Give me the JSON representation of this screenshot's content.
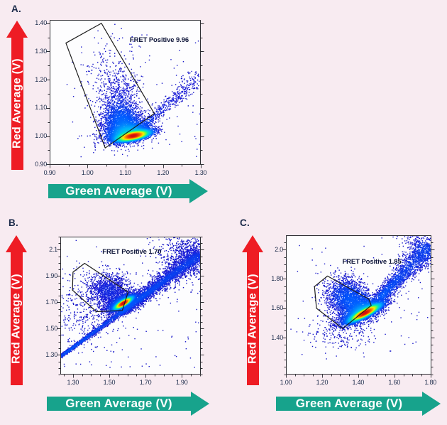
{
  "page": {
    "background": "#f8ebf1"
  },
  "colors": {
    "red_arrow": "#ee1c24",
    "green_arrow": "#17a38c",
    "panel_letter": "#1c2b4a",
    "tick_text": "#1c2b4a",
    "axis_line": "#2e2e33",
    "gate_line": "#1c1c1c",
    "gate_text": "#10173a",
    "plot_bg": "#fdfdfe"
  },
  "chart_data": {
    "type": "scatter",
    "subtype": "density-scatter",
    "description": "Three FRET density dot plots (Red Average vs Green Average) with polygonal FRET-positive gates and percentage values.",
    "colormap": "jet (blue = low density, red = high density)",
    "panels": [
      {
        "panel_label": "A.",
        "xlabel": "Green Average (V)",
        "ylabel": "Red Average (V)",
        "gate_label": "FRET Positive 9.96",
        "gate_value": 9.96,
        "xlim": [
          0.9,
          1.3
        ],
        "ylim": [
          0.898,
          1.412
        ],
        "xtick_values": [
          0.9,
          1.0,
          1.1,
          1.2,
          1.3
        ],
        "xtick_labels": [
          "0.90",
          "1.00",
          "1.10",
          "1.20",
          "1.30"
        ],
        "ytick_values": [
          0.9,
          1.0,
          1.1,
          1.2,
          1.3,
          1.4
        ],
        "ytick_labels": [
          "0.90",
          "1.00",
          "1.10",
          "1.20",
          "1.30",
          "1.40"
        ],
        "minor_tick_step": 0.05,
        "gate_polygon": [
          [
            0.943,
            1.33
          ],
          [
            1.037,
            1.4
          ],
          [
            1.177,
            1.08
          ],
          [
            1.047,
            0.958
          ]
        ],
        "gate_label_anchor": [
          1.112,
          1.338
        ],
        "density_clusters": [
          {
            "type": "gauss",
            "cx": 1.122,
            "cy": 1.001,
            "sa": 0.023,
            "sb": 0.0075,
            "rot": 16,
            "n": 5200
          },
          {
            "type": "gauss",
            "cx": 1.108,
            "cy": 1.014,
            "sa": 0.032,
            "sb": 0.016,
            "rot": 18,
            "n": 2300
          },
          {
            "type": "gauss",
            "cx": 1.094,
            "cy": 1.048,
            "sa": 0.024,
            "sb": 0.031,
            "rot": 0,
            "n": 1300
          },
          {
            "type": "gauss",
            "cx": 1.092,
            "cy": 1.052,
            "sa": 0.036,
            "sb": 0.046,
            "rot": 0,
            "n": 650
          },
          {
            "type": "gauss",
            "cx": 1.082,
            "cy": 1.125,
            "sa": 0.027,
            "sb": 0.058,
            "rot": -8,
            "n": 620
          },
          {
            "type": "gauss",
            "cx": 1.052,
            "cy": 1.235,
            "sa": 0.034,
            "sb": 0.065,
            "rot": -6,
            "n": 150
          },
          {
            "type": "line",
            "x1": 1.155,
            "y1": 1.045,
            "x2": 1.302,
            "y2": 1.215,
            "s1": 0.006,
            "s2": 0.018,
            "n": 430
          },
          {
            "type": "uniform",
            "x0": 0.945,
            "x1": 1.3,
            "y0": 0.92,
            "y1": 1.36,
            "n": 80
          }
        ]
      },
      {
        "panel_label": "B.",
        "xlabel": "Green Average (V)",
        "ylabel": "Red Average (V)",
        "gate_label": "FRET Positive 1.70",
        "gate_value": 1.7,
        "xlim": [
          1.23,
          2.005
        ],
        "ylim": [
          1.15,
          2.2
        ],
        "xtick_values": [
          1.3,
          1.5,
          1.7,
          1.9
        ],
        "xtick_labels": [
          "1.30",
          "1.50",
          "1.70",
          "1.90"
        ],
        "ytick_values": [
          1.3,
          1.5,
          1.7,
          1.9,
          2.1
        ],
        "ytick_labels": [
          "1.30",
          "1.50",
          "1.70",
          "1.90",
          "2.1"
        ],
        "minor_tick_step": 0.05,
        "gate_polygon": [
          [
            1.364,
            1.997
          ],
          [
            1.604,
            1.778
          ],
          [
            1.572,
            1.638
          ],
          [
            1.429,
            1.629
          ],
          [
            1.297,
            1.793
          ],
          [
            1.3,
            1.93
          ]
        ],
        "gate_label_anchor": [
          1.462,
          2.082
        ],
        "density_clusters": [
          {
            "type": "line",
            "x1": 1.232,
            "y1": 1.287,
            "x2": 2.003,
            "y2": 2.065,
            "s1": 0.0055,
            "s2": 0.018,
            "n": 2700
          },
          {
            "type": "line",
            "x1": 1.56,
            "y1": 1.615,
            "x2": 2.003,
            "y2": 2.075,
            "s1": 0.018,
            "s2": 0.05,
            "n": 2300
          },
          {
            "type": "gauss",
            "cx": 1.95,
            "cy": 2.07,
            "sa": 0.075,
            "sb": 0.1,
            "rot": 45,
            "n": 700
          },
          {
            "type": "gauss",
            "cx": 1.578,
            "cy": 1.693,
            "sa": 0.032,
            "sb": 0.009,
            "rot": 42,
            "n": 5200
          },
          {
            "type": "gauss",
            "cx": 1.566,
            "cy": 1.7,
            "sa": 0.052,
            "sb": 0.02,
            "rot": 40,
            "n": 1700
          },
          {
            "type": "gauss",
            "cx": 1.5,
            "cy": 1.785,
            "sa": 0.058,
            "sb": 0.068,
            "rot": 25,
            "n": 1350
          },
          {
            "type": "gauss",
            "cx": 1.37,
            "cy": 1.63,
            "sa": 0.095,
            "sb": 0.15,
            "rot": 0,
            "n": 380
          },
          {
            "type": "uniform",
            "x0": 1.24,
            "x1": 2.0,
            "y0": 1.2,
            "y1": 2.19,
            "n": 130
          }
        ]
      },
      {
        "panel_label": "C.",
        "xlabel": "Green Average (V)",
        "ylabel": "Red Average (V)",
        "gate_label": "FRET Positive 1.85",
        "gate_value": 1.85,
        "xlim": [
          1.0,
          1.805
        ],
        "ylim": [
          1.148,
          2.098
        ],
        "xtick_values": [
          1.0,
          1.2,
          1.4,
          1.6,
          1.8
        ],
        "xtick_labels": [
          "1.00",
          "1.20",
          "1.40",
          "1.60",
          "1.80"
        ],
        "ytick_values": [
          1.4,
          1.6,
          1.8,
          2.0
        ],
        "ytick_labels": [
          "1.40",
          "1.60",
          "1.80",
          "2.0"
        ],
        "minor_tick_step": 0.05,
        "gate_polygon": [
          [
            1.23,
            1.82
          ],
          [
            1.458,
            1.663
          ],
          [
            1.472,
            1.619
          ],
          [
            1.314,
            1.462
          ],
          [
            1.169,
            1.6
          ],
          [
            1.158,
            1.748
          ]
        ],
        "gate_label_anchor": [
          1.312,
          1.912
        ],
        "density_clusters": [
          {
            "type": "gauss",
            "cx": 1.437,
            "cy": 1.568,
            "sa": 0.05,
            "sb": 0.012,
            "rot": 33,
            "n": 5200
          },
          {
            "type": "gauss",
            "cx": 1.425,
            "cy": 1.578,
            "sa": 0.072,
            "sb": 0.028,
            "rot": 33,
            "n": 2400
          },
          {
            "type": "gauss",
            "cx": 1.39,
            "cy": 1.63,
            "sa": 0.055,
            "sb": 0.058,
            "rot": 20,
            "n": 1500
          },
          {
            "type": "gauss",
            "cx": 1.32,
            "cy": 1.695,
            "sa": 0.055,
            "sb": 0.065,
            "rot": -5,
            "n": 1050
          },
          {
            "type": "line",
            "x1": 1.52,
            "y1": 1.67,
            "x2": 1.8,
            "y2": 2.03,
            "s1": 0.016,
            "s2": 0.045,
            "n": 1700
          },
          {
            "type": "gauss",
            "cx": 1.77,
            "cy": 2.01,
            "sa": 0.05,
            "sb": 0.075,
            "rot": 40,
            "n": 380
          },
          {
            "type": "gauss",
            "cx": 1.3,
            "cy": 1.44,
            "sa": 0.09,
            "sb": 0.065,
            "rot": 10,
            "n": 230
          },
          {
            "type": "uniform",
            "x0": 1.05,
            "x1": 1.8,
            "y0": 1.25,
            "y1": 2.05,
            "n": 90
          }
        ]
      }
    ]
  }
}
